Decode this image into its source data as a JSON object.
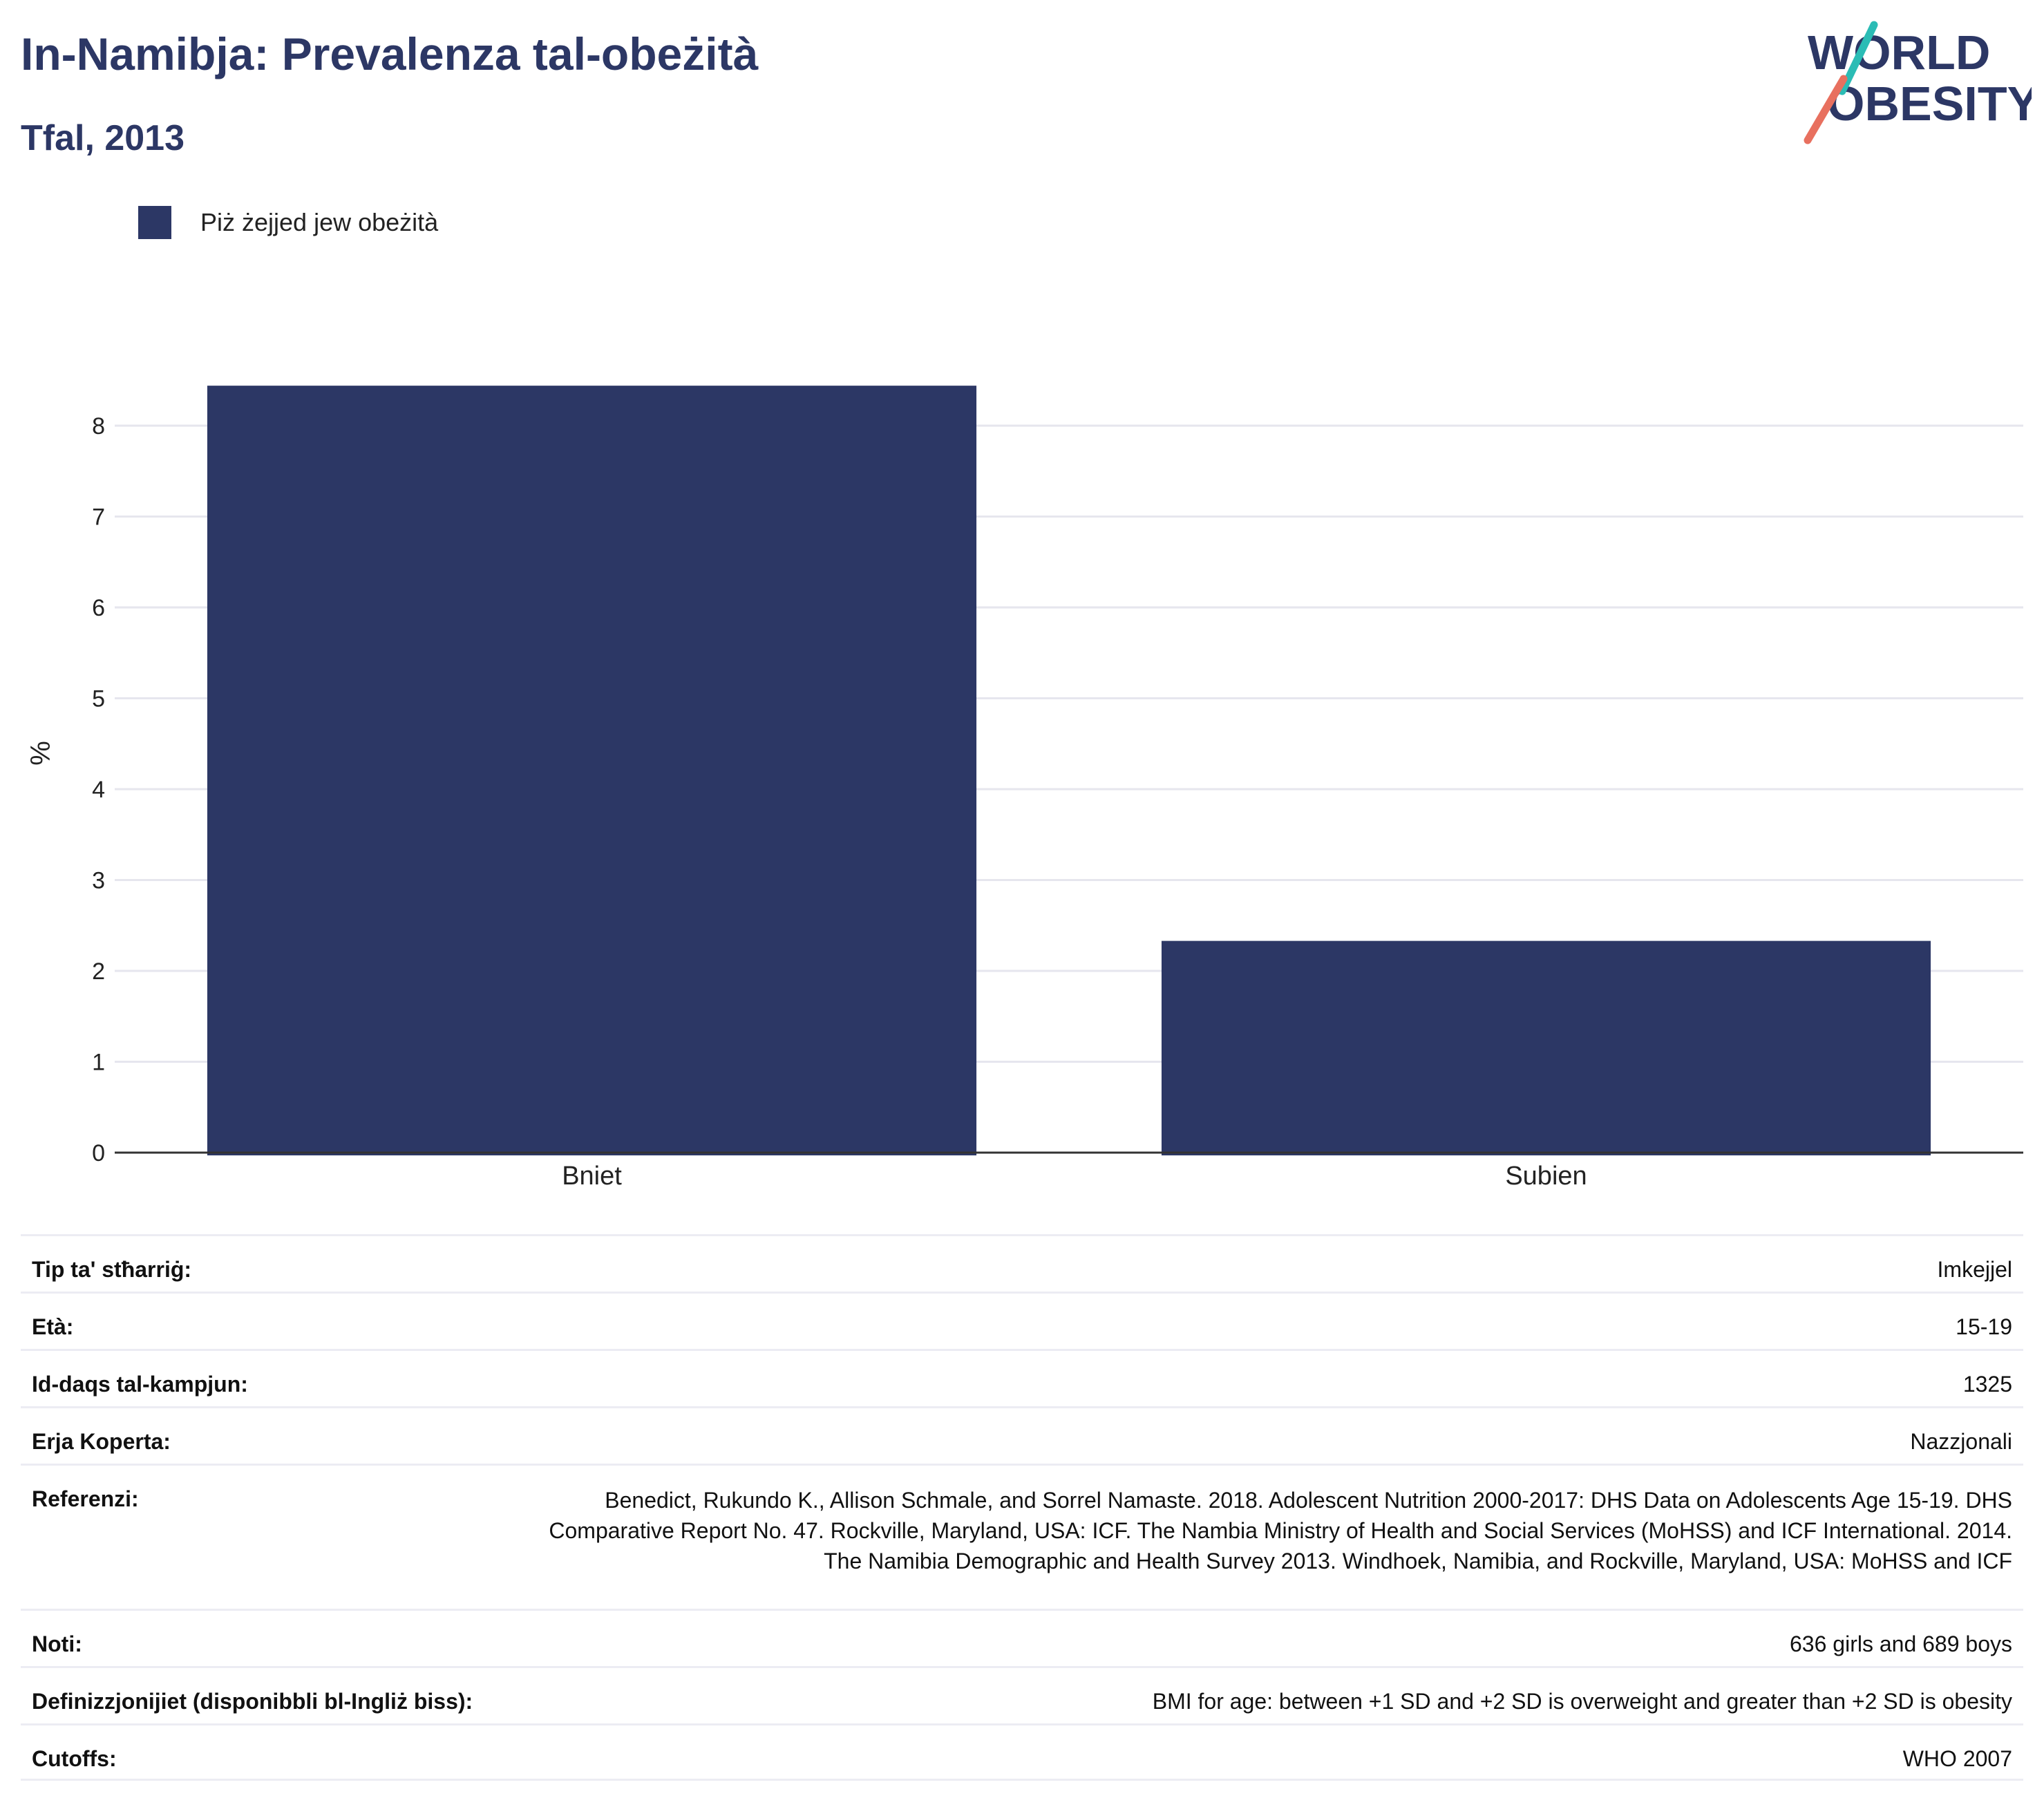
{
  "header": {
    "title": "In-Namibja: Prevalenza tal-obeżità",
    "subtitle": "Tfal, 2013"
  },
  "logo": {
    "line1": "WORLD",
    "line2": "OBESITY",
    "colors": {
      "text": "#2c3765",
      "teal": "#2bbcb5",
      "coral": "#e8705f"
    }
  },
  "legend": {
    "label": "Piż żejjed jew obeżità",
    "color": "#2c3765"
  },
  "chart_data": {
    "type": "bar",
    "categories": [
      "Bniet",
      "Subien"
    ],
    "series": [
      {
        "name": "Piż żejjed jew obeżità",
        "values": [
          8.44,
          2.33
        ],
        "color": "#2c3765"
      }
    ],
    "ylabel": "%",
    "xlabel": "",
    "ylim": [
      0,
      9
    ],
    "yticks": [
      0,
      1,
      2,
      3,
      4,
      5,
      6,
      7,
      8
    ],
    "grid": true,
    "legend_position": "top-left"
  },
  "details": [
    {
      "label": "Tip ta' stħarriġ:",
      "value": "Imkejjel"
    },
    {
      "label": "Età:",
      "value": "15-19"
    },
    {
      "label": "Id-daqs tal-kampjun:",
      "value": "1325"
    },
    {
      "label": "Erja Koperta:",
      "value": "Nazzjonali"
    },
    {
      "label": "Referenzi:",
      "value": "Benedict, Rukundo K., Allison Schmale, and Sorrel Namaste. 2018. Adolescent Nutrition 2000-2017: DHS Data on Adolescents Age 15-19. DHS Comparative Report No. 47. Rockville, Maryland, USA: ICF. The Nambia Ministry of Health and Social Services (MoHSS) and ICF International. 2014. The Namibia Demographic and Health Survey 2013. Windhoek, Namibia, and Rockville, Maryland, USA: MoHSS and ICF"
    },
    {
      "label": "Noti:",
      "value": "636 girls and 689 boys"
    },
    {
      "label": "Definizzjonijiet (disponibbli bl-Ingliż biss):",
      "value": "BMI for age: between +1 SD and +2 SD is overweight and greater than +2 SD is obesity"
    },
    {
      "label": "Cutoffs:",
      "value": "WHO 2007"
    }
  ]
}
